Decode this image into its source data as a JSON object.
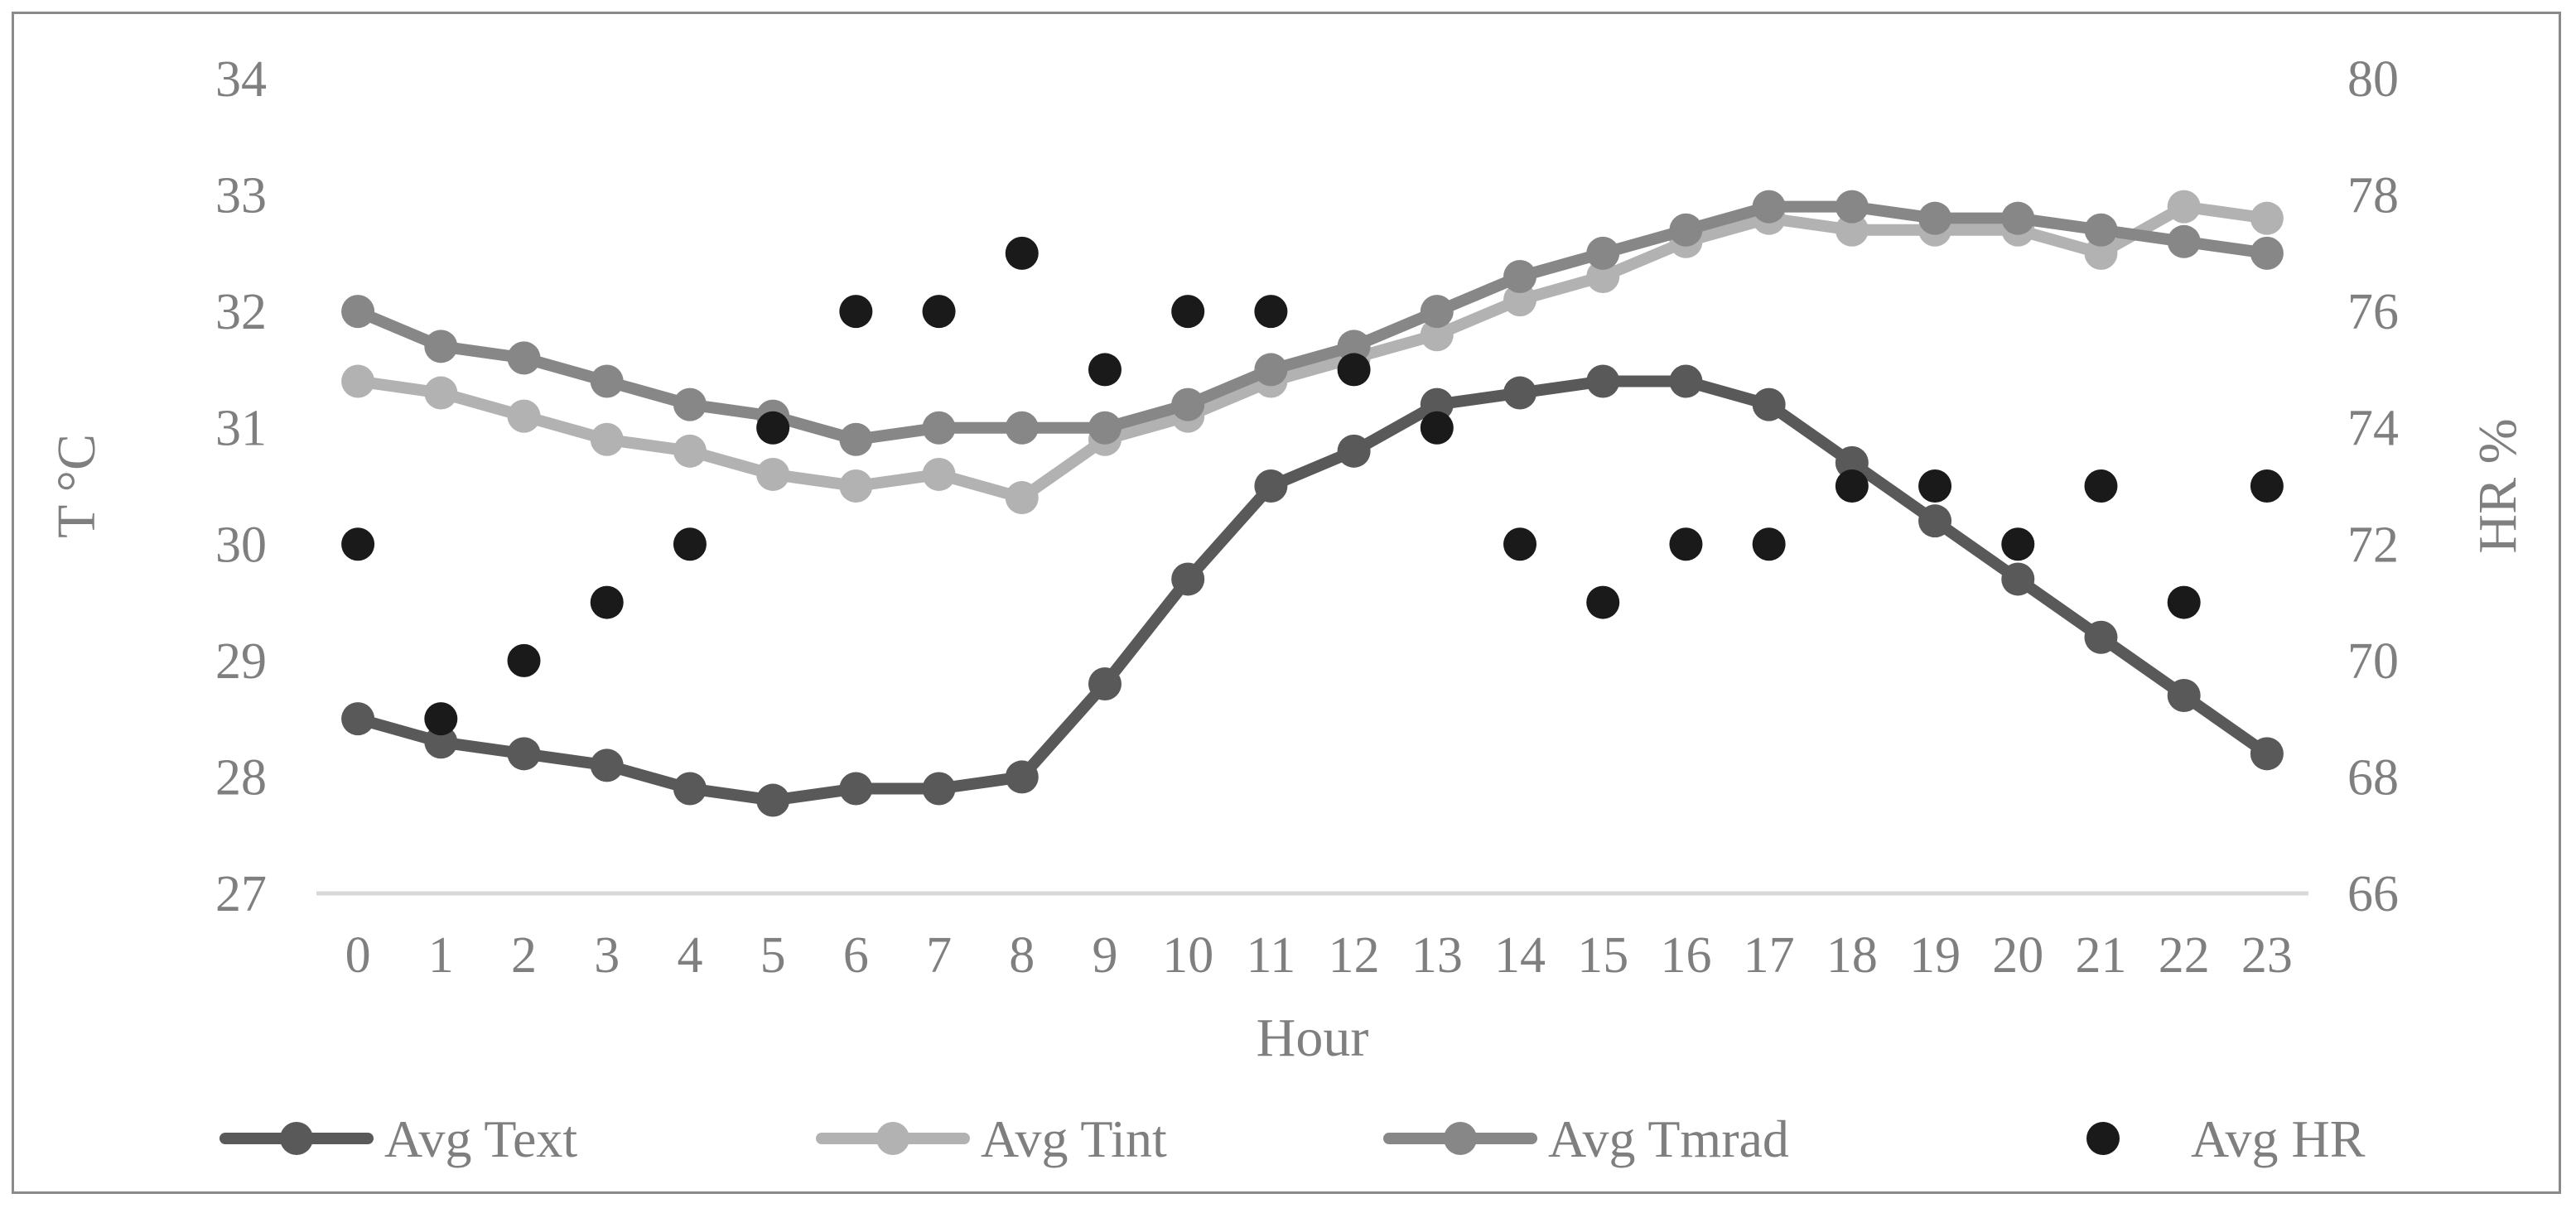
{
  "chart_data": {
    "type": "line",
    "title": "",
    "xlabel": "Hour",
    "ylabel": "T °C",
    "y2label": "HR %",
    "categories": [
      "0",
      "1",
      "2",
      "3",
      "4",
      "5",
      "6",
      "7",
      "8",
      "9",
      "10",
      "11",
      "12",
      "13",
      "14",
      "15",
      "16",
      "17",
      "18",
      "19",
      "20",
      "21",
      "22",
      "23"
    ],
    "ylim": [
      27,
      34
    ],
    "y_ticks": [
      "27",
      "28",
      "29",
      "30",
      "31",
      "32",
      "33",
      "34"
    ],
    "y2lim": [
      66,
      80
    ],
    "y2_ticks": [
      "66",
      "68",
      "70",
      "72",
      "74",
      "76",
      "78",
      "80"
    ],
    "grid": false,
    "legend_position": "bottom",
    "series": [
      {
        "name": "Avg Text",
        "type": "line",
        "axis": "left",
        "color": "#595959",
        "values": [
          28.5,
          28.3,
          28.2,
          28.1,
          27.9,
          27.8,
          27.9,
          27.9,
          28.0,
          28.8,
          29.7,
          30.5,
          30.8,
          31.2,
          31.3,
          31.4,
          31.4,
          31.2,
          30.7,
          30.2,
          29.7,
          29.2,
          28.7,
          28.2
        ]
      },
      {
        "name": "Avg Tint",
        "type": "line",
        "axis": "left",
        "color": "#b2b2b2",
        "values": [
          31.4,
          31.3,
          31.1,
          30.9,
          30.8,
          30.6,
          30.5,
          30.6,
          30.4,
          30.9,
          31.1,
          31.4,
          31.6,
          31.8,
          32.1,
          32.3,
          32.6,
          32.8,
          32.7,
          32.7,
          32.7,
          32.5,
          32.9,
          32.8
        ]
      },
      {
        "name": "Avg Tmrad",
        "type": "line",
        "axis": "left",
        "color": "#878787",
        "values": [
          32.0,
          31.7,
          31.6,
          31.4,
          31.2,
          31.1,
          30.9,
          31.0,
          31.0,
          31.0,
          31.2,
          31.5,
          31.7,
          32.0,
          32.3,
          32.5,
          32.7,
          32.9,
          32.9,
          32.8,
          32.8,
          32.7,
          32.6,
          32.5
        ]
      },
      {
        "name": "Avg HR",
        "type": "scatter",
        "axis": "right",
        "color": "#1a1a1a",
        "values": [
          72,
          69,
          70,
          71,
          72,
          74,
          76,
          76,
          77,
          75,
          76,
          76,
          75,
          74,
          72,
          71,
          72,
          72,
          73,
          73,
          72,
          73,
          71,
          73
        ]
      }
    ]
  }
}
